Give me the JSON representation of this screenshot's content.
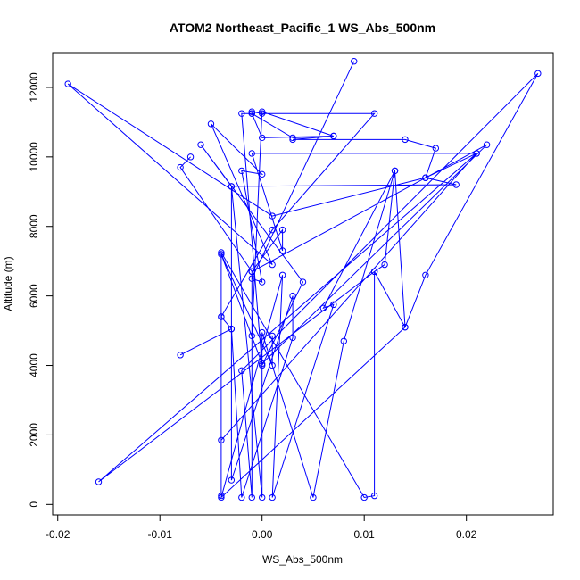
{
  "chart_data": {
    "type": "line",
    "title": "ATOM2 Northeast_Pacific_1 WS_Abs_500nm",
    "xlabel": "WS_Abs_500nm",
    "ylabel": "Altitude (m)",
    "xlim": [
      -0.0205,
      0.0285
    ],
    "ylim": [
      -300,
      13000
    ],
    "x_ticks": [
      -0.02,
      -0.01,
      0.0,
      0.01,
      0.02
    ],
    "x_tick_labels": [
      "-0.02",
      "-0.01",
      "0.00",
      "0.01",
      "0.02"
    ],
    "y_ticks": [
      0,
      2000,
      4000,
      6000,
      8000,
      10000,
      12000
    ],
    "y_tick_labels": [
      "0",
      "2000",
      "4000",
      "6000",
      "8000",
      "10000",
      "12000"
    ],
    "series_color": "#0000ff",
    "series": [
      {
        "points": [
          [
            0.009,
            12750
          ],
          [
            -0.001,
            6500
          ],
          [
            0.0,
            6400
          ],
          [
            -0.002,
            9600
          ],
          [
            0.0,
            9500
          ],
          [
            -0.005,
            10950
          ],
          [
            0.001,
            6900
          ],
          [
            -0.019,
            12100
          ],
          [
            0.001,
            8300
          ],
          [
            0.016,
            9400
          ],
          [
            0.019,
            9200
          ],
          [
            -0.003,
            9150
          ],
          [
            -0.006,
            10350
          ],
          [
            0.004,
            6400
          ],
          [
            0.0,
            4000
          ],
          [
            -0.002,
            11250
          ],
          [
            -0.001,
            11250
          ],
          [
            0.0,
            10550
          ],
          [
            0.007,
            10600
          ],
          [
            0.003,
            10500
          ],
          [
            0.014,
            10500
          ],
          [
            0.017,
            10250
          ],
          [
            0.016,
            9400
          ],
          [
            0.021,
            10100
          ],
          [
            -0.001,
            10100
          ],
          [
            0.002,
            7300
          ],
          [
            0.002,
            7900
          ],
          [
            -0.001,
            6700
          ],
          [
            0.022,
            10350
          ],
          [
            0.0,
            4050
          ],
          [
            -0.004,
            7200
          ],
          [
            0.001,
            4000
          ],
          [
            0.001,
            4850
          ],
          [
            -0.001,
            4850
          ],
          [
            0.0,
            11300
          ],
          [
            0.007,
            10600
          ],
          [
            0.003,
            10550
          ],
          [
            -0.001,
            11250
          ],
          [
            -0.001,
            11300
          ],
          [
            0.0,
            11250
          ],
          [
            0.011,
            11250
          ],
          [
            0.001,
            7900
          ],
          [
            -0.004,
            5400
          ],
          [
            -0.004,
            1850
          ],
          [
            0.021,
            10100
          ],
          [
            -0.016,
            650
          ],
          [
            0.011,
            6700
          ],
          [
            0.011,
            250
          ],
          [
            0.01,
            200
          ],
          [
            -0.004,
            7250
          ],
          [
            -0.004,
            250
          ],
          [
            -0.004,
            5400
          ],
          [
            -0.003,
            5050
          ],
          [
            -0.008,
            4300
          ],
          [
            -0.003,
            5050
          ],
          [
            -0.002,
            200
          ],
          [
            0.003,
            4800
          ],
          [
            0.003,
            6000
          ],
          [
            -0.003,
            700
          ],
          [
            -0.003,
            9150
          ],
          [
            0.0,
            200
          ],
          [
            0.0,
            4950
          ],
          [
            0.005,
            200
          ],
          [
            0.008,
            4700
          ],
          [
            0.013,
            9600
          ],
          [
            0.012,
            6900
          ],
          [
            0.011,
            6700
          ],
          [
            0.014,
            5100
          ],
          [
            0.013,
            9600
          ],
          [
            0.006,
            5650
          ],
          [
            0.007,
            5750
          ],
          [
            0.001,
            200
          ],
          [
            0.002,
            6600
          ],
          [
            -0.004,
            200
          ],
          [
            0.014,
            5100
          ],
          [
            0.016,
            6600
          ],
          [
            0.027,
            12400
          ],
          [
            -0.002,
            3850
          ],
          [
            -0.001,
            200
          ],
          [
            -0.001,
            6700
          ],
          [
            -0.008,
            9700
          ],
          [
            -0.007,
            10000
          ]
        ]
      }
    ]
  }
}
